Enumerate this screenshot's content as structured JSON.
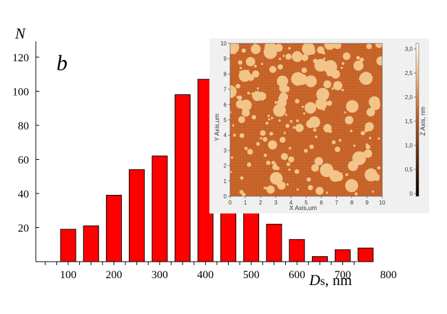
{
  "chart_data": {
    "type": "bar",
    "panel_label": "b",
    "ylabel": "N",
    "xlabel": "Ds, nm",
    "xlabel_parts": {
      "symbol": "D",
      "subscript": "s",
      "unit": ", nm"
    },
    "ylim": [
      0,
      120
    ],
    "yticks": [
      "0",
      "20",
      "40",
      "60",
      "80",
      "100",
      "120"
    ],
    "xlim": [
      0,
      950
    ],
    "xticks": [
      "100",
      "200",
      "300",
      "400",
      "500",
      "600",
      "700",
      "800"
    ],
    "bar_color": "#ff0000",
    "bars": [
      {
        "x": 100,
        "value": 19
      },
      {
        "x": 150,
        "value": 21
      },
      {
        "x": 200,
        "value": 39
      },
      {
        "x": 250,
        "value": 54
      },
      {
        "x": 300,
        "value": 62
      },
      {
        "x": 350,
        "value": 98
      },
      {
        "x": 400,
        "value": 107
      },
      {
        "x": 450,
        "value": 98
      },
      {
        "x": 500,
        "value": 56
      },
      {
        "x": 550,
        "value": 22
      },
      {
        "x": 600,
        "value": 13
      },
      {
        "x": 650,
        "value": 3
      },
      {
        "x": 700,
        "value": 7
      },
      {
        "x": 750,
        "value": 8
      }
    ]
  },
  "inset": {
    "type": "afm-topography-map",
    "xlabel": "X Axis,um",
    "ylabel": "Y Axis,um",
    "zlabel": "Z Axis, nm",
    "xticks": [
      "0",
      "1",
      "2",
      "3",
      "4",
      "5",
      "6",
      "7",
      "8",
      "9",
      "10"
    ],
    "yticks": [
      "0",
      "1",
      "2",
      "3",
      "4",
      "5",
      "6",
      "7",
      "8",
      "9",
      "10"
    ],
    "zticks": [
      "0",
      "0,5",
      "1,0",
      "1,5",
      "2,0",
      "2,5",
      "3,0"
    ],
    "colors": {
      "substrate": "#c8652a",
      "island": "#f2c489",
      "colorbar_low": "#000000",
      "colorbar_mid": "#c8652a",
      "colorbar_high": "#ffffff"
    }
  }
}
